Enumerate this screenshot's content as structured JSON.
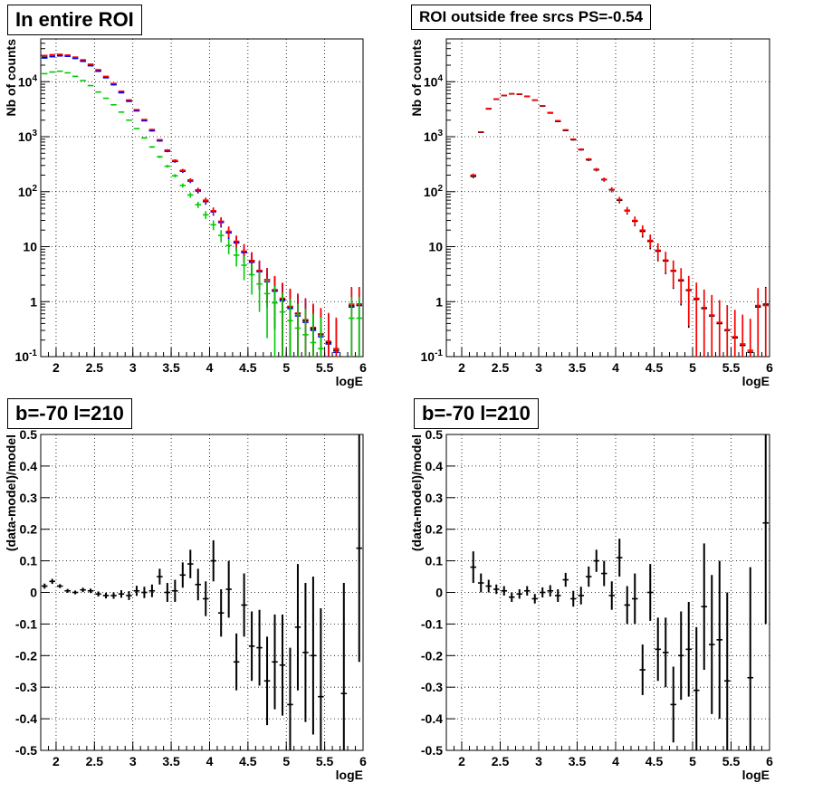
{
  "titles": {
    "tl": "In entire ROI",
    "tr": "ROI outside free srcs PS=-0.54",
    "bl": "b=-70 l=210",
    "br": "b=-70 l=210"
  },
  "chart_data": [
    {
      "type": "scatter",
      "title": "In entire ROI",
      "xlabel": "logE",
      "ylabel": "Nb of counts",
      "xlim": [
        1.8,
        6.0
      ],
      "ylim": [
        0.1,
        60000
      ],
      "yscale": "log",
      "grid": true,
      "xticks": [
        "2",
        "2.5",
        "3",
        "3.5",
        "4",
        "4.5",
        "5",
        "5.5",
        "6"
      ],
      "yticks": [
        "10^-1",
        "1",
        "10",
        "10^2",
        "10^3",
        "10^4"
      ],
      "x": [
        1.85,
        1.95,
        2.05,
        2.15,
        2.25,
        2.35,
        2.45,
        2.55,
        2.65,
        2.75,
        2.85,
        2.95,
        3.05,
        3.15,
        3.25,
        3.35,
        3.45,
        3.55,
        3.65,
        3.75,
        3.85,
        3.95,
        4.05,
        4.15,
        4.25,
        4.35,
        4.45,
        4.55,
        4.65,
        4.75,
        4.85,
        4.95,
        5.05,
        5.15,
        5.25,
        5.35,
        5.45,
        5.55,
        5.65,
        5.75,
        5.85,
        5.95
      ],
      "series": [
        {
          "color": "#000000",
          "values": [
            28000,
            29000,
            30000,
            29500,
            27000,
            24000,
            20000,
            16000,
            12000,
            9000,
            6500,
            4500,
            3000,
            2000,
            1300,
            850,
            550,
            360,
            240,
            160,
            105,
            68,
            44,
            28,
            18,
            12,
            8,
            5.5,
            3.6,
            2.5,
            1.6,
            1.1,
            0.8,
            0.6,
            0.45,
            0.32,
            0.25,
            0.18,
            0.13,
            0.1,
            0.8,
            0.9
          ],
          "err_up": [
            0,
            0,
            0,
            0,
            0,
            0,
            0,
            0,
            0,
            0,
            0,
            0,
            0,
            0,
            0,
            0,
            0,
            0,
            0,
            0,
            0,
            0,
            0,
            0,
            0,
            0,
            0,
            0,
            0,
            0,
            0,
            0,
            0,
            0,
            0,
            0,
            0,
            0,
            0,
            0,
            0,
            0
          ]
        },
        {
          "color": "#0000ff",
          "values": [
            27000,
            28500,
            29500,
            29000,
            26500,
            23500,
            19500,
            15500,
            11800,
            8800,
            6300,
            4400,
            2950,
            1950,
            1280,
            840,
            545,
            355,
            235,
            156,
            103,
            66,
            43,
            27.5,
            17.8,
            11.7,
            7.8,
            5.2,
            3.5,
            2.3,
            1.55,
            1.05,
            0.75,
            0.55,
            0.42,
            0.3,
            0.23,
            0.17,
            0.12,
            0.09,
            0.85,
            0.85
          ]
        },
        {
          "color": "#ff0000",
          "values": [
            30000,
            31000,
            31500,
            30500,
            28000,
            25000,
            20800,
            16500,
            12500,
            9300,
            6700,
            4650,
            3100,
            2050,
            1350,
            880,
            570,
            370,
            245,
            163,
            108,
            70,
            45,
            29,
            19,
            12.5,
            8.3,
            5.6,
            3.7,
            2.5,
            1.65,
            1.15,
            0.82,
            0.62,
            0.47,
            0.34,
            0.26,
            0.19,
            0.14,
            0.1,
            0.9,
            0.9
          ]
        },
        {
          "color": "#00cc00",
          "values": [
            14000,
            15000,
            15500,
            14500,
            12500,
            10500,
            8500,
            6500,
            5000,
            3800,
            2800,
            2000,
            1400,
            950,
            650,
            430,
            290,
            195,
            130,
            87,
            58,
            38,
            25,
            16,
            10.5,
            7,
            4.6,
            3.1,
            2.1,
            1.4,
            0.95,
            0.65,
            0.45,
            0.33,
            0.25,
            0.18,
            0.14,
            0.1,
            0.08,
            0.06,
            0.5,
            0.5
          ]
        }
      ]
    },
    {
      "type": "scatter",
      "title": "ROI outside free srcs PS=-0.54",
      "xlabel": "logE",
      "ylabel": "Nb of counts",
      "xlim": [
        1.8,
        6.0
      ],
      "ylim": [
        0.1,
        60000
      ],
      "yscale": "log",
      "grid": true,
      "xticks": [
        "2",
        "2.5",
        "3",
        "3.5",
        "4",
        "4.5",
        "5",
        "5.5",
        "6"
      ],
      "yticks": [
        "10^-1",
        "1",
        "10",
        "10^2",
        "10^3",
        "10^4"
      ],
      "x": [
        2.15,
        2.25,
        2.35,
        2.45,
        2.55,
        2.65,
        2.75,
        2.85,
        2.95,
        3.05,
        3.15,
        3.25,
        3.35,
        3.45,
        3.55,
        3.65,
        3.75,
        3.85,
        3.95,
        4.05,
        4.15,
        4.25,
        4.35,
        4.45,
        4.55,
        4.65,
        4.75,
        4.85,
        4.95,
        5.05,
        5.15,
        5.25,
        5.35,
        5.45,
        5.55,
        5.65,
        5.75,
        5.85,
        5.95
      ],
      "series": [
        {
          "color": "#000000",
          "values": [
            190,
            1200,
            3200,
            4800,
            5600,
            6000,
            5900,
            5400,
            4600,
            3600,
            2700,
            1900,
            1300,
            880,
            580,
            380,
            250,
            165,
            108,
            70,
            45,
            29,
            19,
            12.5,
            8.3,
            5.5,
            3.6,
            2.4,
            1.6,
            1.1,
            0.75,
            0.55,
            0.4,
            0.3,
            0.22,
            0.16,
            0.12,
            0.8,
            0.9
          ]
        },
        {
          "color": "#ff0000",
          "values": [
            200,
            1220,
            3250,
            4850,
            5650,
            6050,
            5950,
            5450,
            4650,
            3650,
            2750,
            1950,
            1330,
            900,
            590,
            390,
            255,
            168,
            110,
            72,
            46,
            30,
            20,
            13,
            8.6,
            5.7,
            3.7,
            2.5,
            1.65,
            1.15,
            0.78,
            0.57,
            0.42,
            0.31,
            0.23,
            0.17,
            0.13,
            0.85,
            0.85
          ]
        }
      ]
    },
    {
      "type": "scatter",
      "title": "b=-70 l=210",
      "xlabel": "logE",
      "ylabel": "(data-model)/model",
      "xlim": [
        1.8,
        6.0
      ],
      "ylim": [
        -0.5,
        0.5
      ],
      "grid": true,
      "xticks": [
        "2",
        "2.5",
        "3",
        "3.5",
        "4",
        "4.5",
        "5",
        "5.5",
        "6"
      ],
      "yticks": [
        "-0.5",
        "-0.4",
        "-0.3",
        "-0.2",
        "-0.1",
        "0",
        "0.1",
        "0.2",
        "0.3",
        "0.4",
        "0.5"
      ],
      "x": [
        1.85,
        1.95,
        2.05,
        2.15,
        2.25,
        2.35,
        2.45,
        2.55,
        2.65,
        2.75,
        2.85,
        2.95,
        3.05,
        3.15,
        3.25,
        3.35,
        3.45,
        3.55,
        3.65,
        3.75,
        3.85,
        3.95,
        4.05,
        4.15,
        4.25,
        4.35,
        4.45,
        4.55,
        4.65,
        4.75,
        4.85,
        4.95,
        5.05,
        5.15,
        5.25,
        5.35,
        5.45,
        5.55,
        5.65,
        5.75,
        5.85,
        5.95
      ],
      "values": [
        0.02,
        0.035,
        0.02,
        0.005,
        0.0,
        0.008,
        0.005,
        -0.005,
        -0.01,
        -0.01,
        -0.005,
        -0.01,
        0.005,
        0.0,
        0.005,
        0.05,
        0.0,
        0.005,
        0.055,
        0.09,
        0.025,
        -0.02,
        0.1,
        -0.065,
        0.01,
        -0.22,
        -0.04,
        -0.17,
        -0.175,
        -0.28,
        -0.22,
        -0.23,
        -0.355,
        -0.11,
        -0.19,
        -0.2,
        -0.33,
        null,
        null,
        -0.32,
        null,
        0.14
      ],
      "errors": [
        0.008,
        0.008,
        0.006,
        0.006,
        0.006,
        0.007,
        0.007,
        0.008,
        0.009,
        0.01,
        0.012,
        0.014,
        0.016,
        0.018,
        0.02,
        0.025,
        0.03,
        0.035,
        0.04,
        0.045,
        0.05,
        0.055,
        0.065,
        0.075,
        0.09,
        0.09,
        0.1,
        0.11,
        0.12,
        0.14,
        0.15,
        0.16,
        0.18,
        0.2,
        0.22,
        0.25,
        0.28,
        0,
        0,
        0.35,
        0,
        0.36
      ]
    },
    {
      "type": "scatter",
      "title": "b=-70 l=210",
      "xlabel": "logE",
      "ylabel": "(data-model)/model",
      "xlim": [
        1.8,
        6.0
      ],
      "ylim": [
        -0.5,
        0.5
      ],
      "grid": true,
      "xticks": [
        "2",
        "2.5",
        "3",
        "3.5",
        "4",
        "4.5",
        "5",
        "5.5",
        "6"
      ],
      "yticks": [
        "-0.5",
        "-0.4",
        "-0.3",
        "-0.2",
        "-0.1",
        "0",
        "0.1",
        "0.2",
        "0.3",
        "0.4",
        "0.5"
      ],
      "x": [
        2.15,
        2.25,
        2.35,
        2.45,
        2.55,
        2.65,
        2.75,
        2.85,
        2.95,
        3.05,
        3.15,
        3.25,
        3.35,
        3.45,
        3.55,
        3.65,
        3.75,
        3.85,
        3.95,
        4.05,
        4.15,
        4.25,
        4.35,
        4.45,
        4.55,
        4.65,
        4.75,
        4.85,
        4.95,
        5.05,
        5.15,
        5.25,
        5.35,
        5.45,
        5.55,
        5.65,
        5.75,
        5.85,
        5.95
      ],
      "values": [
        0.08,
        0.03,
        0.02,
        0.01,
        0.005,
        -0.015,
        -0.005,
        0.005,
        -0.02,
        0.0,
        0.005,
        -0.01,
        0.04,
        -0.02,
        -0.01,
        0.05,
        0.1,
        0.06,
        -0.01,
        0.11,
        -0.04,
        -0.02,
        -0.245,
        0.0,
        -0.18,
        -0.19,
        -0.355,
        -0.2,
        -0.18,
        -0.31,
        -0.045,
        -0.165,
        -0.15,
        -0.28,
        null,
        null,
        -0.27,
        null,
        0.22
      ],
      "errors": [
        0.05,
        0.03,
        0.02,
        0.015,
        0.015,
        0.015,
        0.015,
        0.015,
        0.015,
        0.016,
        0.018,
        0.02,
        0.022,
        0.025,
        0.028,
        0.032,
        0.035,
        0.04,
        0.045,
        0.06,
        0.06,
        0.08,
        0.08,
        0.09,
        0.1,
        0.11,
        0.12,
        0.14,
        0.15,
        0.2,
        0.2,
        0.22,
        0.25,
        0.28,
        0,
        0,
        0.35,
        0,
        0.32
      ]
    }
  ]
}
